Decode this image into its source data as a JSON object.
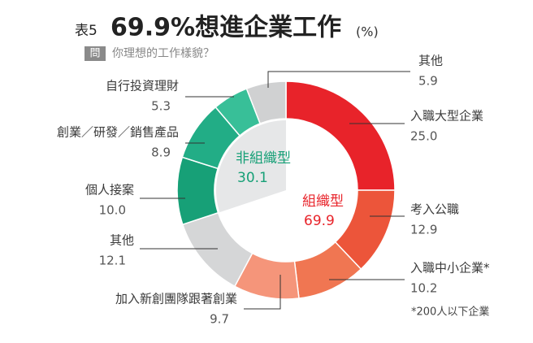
{
  "chart_data": {
    "type": "donut",
    "table_no": "表5",
    "title": "69.9%想進企業工作",
    "unit": "(%)",
    "question_tag": "問",
    "subtitle": "你理想的工作樣貌？",
    "footnote": "*200人以下企業",
    "categories": [
      "入職大型企業",
      "考入公職",
      "入職中小企業*",
      "加入新創團隊跟著創業",
      "其他",
      "個人接案",
      "創業／研發／銷售產品",
      "自行投資理財",
      "其他"
    ],
    "values": [
      25.0,
      12.9,
      10.2,
      9.7,
      12.1,
      10.0,
      8.9,
      5.3,
      5.9
    ],
    "value_labels": [
      "25.0",
      "12.9",
      "10.2",
      "9.7",
      "12.1",
      "10.0",
      "8.9",
      "5.3",
      "5.9"
    ],
    "colors": [
      "#e8232a",
      "#ec553a",
      "#f07652",
      "#f5957a",
      "#d5d6d7",
      "#17a077",
      "#22ad86",
      "#38bf98",
      "#d0d1d2"
    ],
    "inner": {
      "categories": [
        "組織型",
        "非組織型"
      ],
      "values": [
        69.9,
        30.1
      ],
      "colors": [
        "#ffffff",
        "#e6e7e8"
      ],
      "label_colors": [
        "#e8232a",
        "#17a077"
      ]
    }
  }
}
